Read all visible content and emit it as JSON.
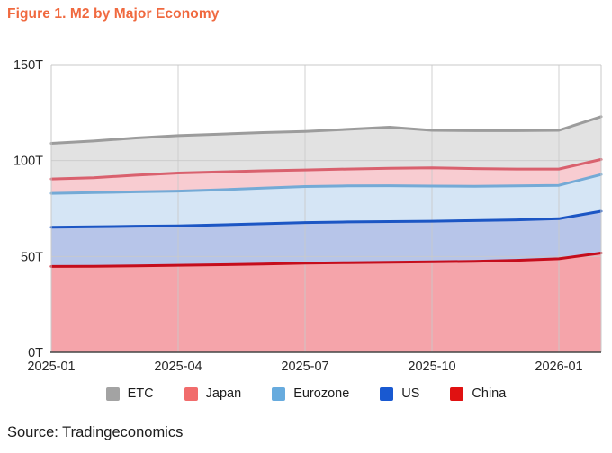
{
  "title": "Figure 1. M2 by Major Economy",
  "source": "Source: Tradingeconomics",
  "colors": {
    "title": "#f0693f",
    "axis_text": "#262626",
    "gridline": "#c9c9c9",
    "plot_border": "#c9c9c9",
    "axis_line": "#454545",
    "background": "#ffffff"
  },
  "legend": {
    "position": "bottom-center",
    "items": [
      {
        "label": "ETC",
        "color": "#a3a3a3"
      },
      {
        "label": "Japan",
        "color": "#f16c6c"
      },
      {
        "label": "Eurozone",
        "color": "#67abde"
      },
      {
        "label": "US",
        "color": "#1959d1"
      },
      {
        "label": "China",
        "color": "#e01111"
      }
    ]
  },
  "chart_data": {
    "type": "area",
    "stacked": true,
    "title": "Figure 1. M2 by Major Economy",
    "xlabel": "",
    "ylabel": "",
    "ylim": [
      0,
      150
    ],
    "y_ticks": [
      0,
      50,
      100,
      150
    ],
    "y_tick_labels": [
      "0T",
      "50T",
      "100T",
      "150T"
    ],
    "x": [
      "2025-01",
      "2025-02",
      "2025-03",
      "2025-04",
      "2025-05",
      "2025-06",
      "2025-07",
      "2025-08",
      "2025-09",
      "2025-10",
      "2025-11",
      "2025-12",
      "2026-01",
      "2026-02"
    ],
    "x_label_indices": [
      0,
      3,
      6,
      9,
      12
    ],
    "x_tick_labels": [
      "2025-01",
      "2025-04",
      "2025-07",
      "2025-10",
      "2026-01"
    ],
    "x_gridline_indices": [
      3,
      6,
      9,
      12
    ],
    "grid": true,
    "unit": "T (trillion USD)",
    "series": [
      {
        "name": "China",
        "line_color": "#c50d1c",
        "fill_color": "#f5a4aa",
        "values": [
          44.8,
          44.9,
          45.1,
          45.4,
          45.7,
          46.1,
          46.5,
          46.8,
          47.0,
          47.2,
          47.5,
          48.0,
          48.8,
          51.8
        ]
      },
      {
        "name": "US",
        "line_color": "#1c56c4",
        "fill_color": "#b7c5e9",
        "values": [
          20.5,
          20.6,
          20.7,
          20.6,
          20.8,
          21.0,
          21.2,
          21.2,
          21.2,
          21.2,
          21.2,
          21.1,
          20.9,
          21.8
        ]
      },
      {
        "name": "Eurozone",
        "line_color": "#74aad6",
        "fill_color": "#d5e5f5",
        "values": [
          17.6,
          17.8,
          17.9,
          18.1,
          18.3,
          18.6,
          18.8,
          18.8,
          18.7,
          18.3,
          17.9,
          17.7,
          17.4,
          19.1
        ]
      },
      {
        "name": "Japan",
        "line_color": "#d9616e",
        "fill_color": "#f8ccd1",
        "values": [
          7.5,
          7.8,
          8.7,
          9.4,
          9.3,
          9.0,
          8.6,
          8.8,
          9.1,
          9.5,
          9.2,
          8.8,
          8.5,
          7.9
        ]
      },
      {
        "name": "ETC",
        "line_color": "#9c9c9c",
        "fill_color": "#e2e2e2",
        "values": [
          18.6,
          19.1,
          19.4,
          19.5,
          19.7,
          19.9,
          20.1,
          20.7,
          21.4,
          19.6,
          19.8,
          20.0,
          20.2,
          22.3
        ]
      }
    ]
  }
}
